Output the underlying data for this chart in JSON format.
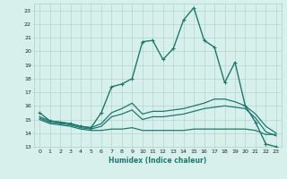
{
  "xlabel": "Humidex (Indice chaleur)",
  "xlim": [
    -0.5,
    23.5
  ],
  "ylim": [
    13,
    23.5
  ],
  "yticks": [
    13,
    14,
    15,
    16,
    17,
    18,
    19,
    20,
    21,
    22,
    23
  ],
  "xticks": [
    0,
    1,
    2,
    3,
    4,
    5,
    6,
    7,
    8,
    9,
    10,
    11,
    12,
    13,
    14,
    15,
    16,
    17,
    18,
    19,
    20,
    21,
    22,
    23
  ],
  "background_color": "#d8f0ec",
  "grid_color": "#aacfcb",
  "line_color": "#1a7a6e",
  "lines": [
    {
      "x": [
        0,
        1,
        2,
        3,
        4,
        5,
        6,
        7,
        8,
        9,
        10,
        11,
        12,
        13,
        14,
        15,
        16,
        17,
        18,
        19,
        20,
        21,
        22,
        23
      ],
      "y": [
        15.5,
        14.9,
        14.8,
        14.7,
        14.5,
        14.4,
        15.5,
        17.4,
        17.6,
        18.0,
        20.7,
        20.8,
        19.4,
        20.2,
        22.3,
        23.2,
        20.8,
        20.3,
        17.7,
        19.2,
        16.0,
        14.8,
        13.2,
        13.0
      ],
      "marker": "+",
      "linewidth": 1.0
    },
    {
      "x": [
        0,
        1,
        2,
        3,
        4,
        5,
        6,
        7,
        8,
        9,
        10,
        11,
        12,
        13,
        14,
        15,
        16,
        17,
        18,
        19,
        20,
        21,
        22,
        23
      ],
      "y": [
        15.2,
        14.9,
        14.8,
        14.7,
        14.5,
        14.4,
        14.7,
        15.5,
        15.8,
        16.2,
        15.4,
        15.6,
        15.6,
        15.7,
        15.8,
        16.0,
        16.2,
        16.5,
        16.5,
        16.3,
        16.0,
        15.4,
        14.5,
        14.0
      ],
      "marker": null,
      "linewidth": 0.9
    },
    {
      "x": [
        0,
        1,
        2,
        3,
        4,
        5,
        6,
        7,
        8,
        9,
        10,
        11,
        12,
        13,
        14,
        15,
        16,
        17,
        18,
        19,
        20,
        21,
        22,
        23
      ],
      "y": [
        15.1,
        14.8,
        14.7,
        14.6,
        14.4,
        14.3,
        14.5,
        15.2,
        15.4,
        15.7,
        15.0,
        15.2,
        15.2,
        15.3,
        15.4,
        15.6,
        15.8,
        15.9,
        16.0,
        15.9,
        15.8,
        15.1,
        14.1,
        13.8
      ],
      "marker": null,
      "linewidth": 0.9
    },
    {
      "x": [
        0,
        1,
        2,
        3,
        4,
        5,
        6,
        7,
        8,
        9,
        10,
        11,
        12,
        13,
        14,
        15,
        16,
        17,
        18,
        19,
        20,
        21,
        22,
        23
      ],
      "y": [
        15.0,
        14.7,
        14.6,
        14.5,
        14.3,
        14.2,
        14.2,
        14.3,
        14.3,
        14.4,
        14.2,
        14.2,
        14.2,
        14.2,
        14.2,
        14.3,
        14.3,
        14.3,
        14.3,
        14.3,
        14.3,
        14.2,
        13.9,
        13.9
      ],
      "marker": null,
      "linewidth": 0.9
    }
  ]
}
